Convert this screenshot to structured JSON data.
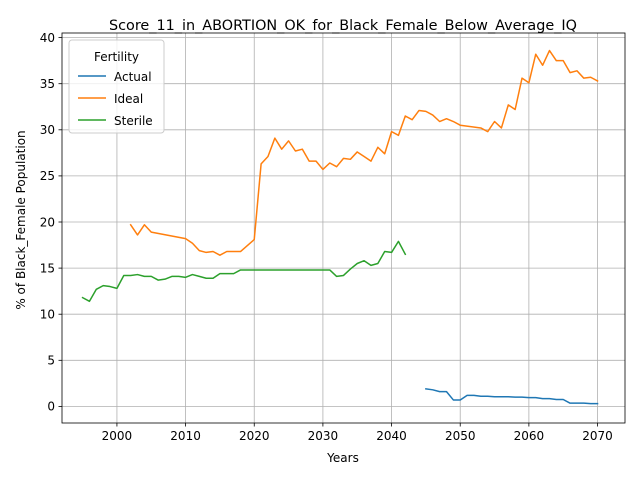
{
  "chart_data": {
    "type": "line",
    "title": "Score_11_in_ABORTION_OK_for_Black_Female_Below_Average_IQ",
    "xlabel": "Years",
    "ylabel": "% of Black_Female Population",
    "xlim": [
      1992,
      2074
    ],
    "ylim": [
      -1.8,
      40.5
    ],
    "xticks": [
      2000,
      2010,
      2020,
      2030,
      2040,
      2050,
      2060,
      2070
    ],
    "yticks": [
      0,
      5,
      10,
      15,
      20,
      25,
      30,
      35,
      40
    ],
    "grid": true,
    "legend": {
      "title": "Fertility",
      "position": "top-left"
    },
    "series": [
      {
        "name": "Actual",
        "color": "#1f77b4",
        "points": [
          [
            2045,
            1.9
          ],
          [
            2046,
            1.8
          ],
          [
            2047,
            1.6
          ],
          [
            2048,
            1.6
          ],
          [
            2049,
            0.7
          ],
          [
            2050,
            0.7
          ],
          [
            2051,
            1.2
          ],
          [
            2052,
            1.2
          ],
          [
            2053,
            1.1
          ],
          [
            2054,
            1.1
          ],
          [
            2055,
            1.05
          ],
          [
            2056,
            1.05
          ],
          [
            2057,
            1.05
          ],
          [
            2058,
            1.0
          ],
          [
            2059,
            1.0
          ],
          [
            2060,
            0.95
          ],
          [
            2061,
            0.95
          ],
          [
            2062,
            0.85
          ],
          [
            2063,
            0.85
          ],
          [
            2064,
            0.75
          ],
          [
            2065,
            0.75
          ],
          [
            2066,
            0.35
          ],
          [
            2067,
            0.35
          ],
          [
            2068,
            0.35
          ],
          [
            2069,
            0.3
          ],
          [
            2070,
            0.3
          ]
        ]
      },
      {
        "name": "Ideal",
        "color": "#ff7f0e",
        "points": [
          [
            2002,
            19.7
          ],
          [
            2003,
            18.6
          ],
          [
            2004,
            19.7
          ],
          [
            2005,
            18.9
          ],
          [
            2010,
            18.2
          ],
          [
            2011,
            17.7
          ],
          [
            2012,
            16.9
          ],
          [
            2013,
            16.7
          ],
          [
            2014,
            16.8
          ],
          [
            2015,
            16.4
          ],
          [
            2016,
            16.8
          ],
          [
            2017,
            16.8
          ],
          [
            2018,
            16.8
          ],
          [
            2020,
            18.1
          ],
          [
            2021,
            26.3
          ],
          [
            2022,
            27.1
          ],
          [
            2023,
            29.1
          ],
          [
            2024,
            27.9
          ],
          [
            2025,
            28.8
          ],
          [
            2026,
            27.7
          ],
          [
            2027,
            27.9
          ],
          [
            2028,
            26.6
          ],
          [
            2029,
            26.6
          ],
          [
            2030,
            25.7
          ],
          [
            2031,
            26.4
          ],
          [
            2032,
            26.0
          ],
          [
            2033,
            26.9
          ],
          [
            2034,
            26.8
          ],
          [
            2035,
            27.6
          ],
          [
            2036,
            27.1
          ],
          [
            2037,
            26.6
          ],
          [
            2038,
            28.1
          ],
          [
            2039,
            27.4
          ],
          [
            2040,
            29.8
          ],
          [
            2041,
            29.4
          ],
          [
            2042,
            31.5
          ],
          [
            2043,
            31.1
          ],
          [
            2044,
            32.1
          ],
          [
            2045,
            32.0
          ],
          [
            2046,
            31.6
          ],
          [
            2047,
            30.9
          ],
          [
            2048,
            31.2
          ],
          [
            2049,
            30.9
          ],
          [
            2050,
            30.5
          ],
          [
            2053,
            30.2
          ],
          [
            2054,
            29.8
          ],
          [
            2055,
            30.9
          ],
          [
            2056,
            30.2
          ],
          [
            2057,
            32.7
          ],
          [
            2058,
            32.2
          ],
          [
            2059,
            35.6
          ],
          [
            2060,
            35.1
          ],
          [
            2061,
            38.2
          ],
          [
            2062,
            37.0
          ],
          [
            2063,
            38.6
          ],
          [
            2064,
            37.5
          ],
          [
            2065,
            37.5
          ],
          [
            2066,
            36.2
          ],
          [
            2067,
            36.4
          ],
          [
            2068,
            35.6
          ],
          [
            2069,
            35.7
          ],
          [
            2070,
            35.3
          ]
        ]
      },
      {
        "name": "Sterile",
        "color": "#2ca02c",
        "points": [
          [
            1995,
            11.8
          ],
          [
            1996,
            11.4
          ],
          [
            1997,
            12.7
          ],
          [
            1998,
            13.1
          ],
          [
            1999,
            13.0
          ],
          [
            2000,
            12.8
          ],
          [
            2001,
            14.2
          ],
          [
            2002,
            14.2
          ],
          [
            2003,
            14.3
          ],
          [
            2004,
            14.1
          ],
          [
            2005,
            14.1
          ],
          [
            2006,
            13.7
          ],
          [
            2007,
            13.8
          ],
          [
            2008,
            14.1
          ],
          [
            2009,
            14.1
          ],
          [
            2010,
            14.0
          ],
          [
            2011,
            14.3
          ],
          [
            2012,
            14.1
          ],
          [
            2013,
            13.9
          ],
          [
            2014,
            13.9
          ],
          [
            2015,
            14.4
          ],
          [
            2016,
            14.4
          ],
          [
            2017,
            14.4
          ],
          [
            2018,
            14.8
          ],
          [
            2019,
            14.8
          ],
          [
            2031,
            14.8
          ],
          [
            2032,
            14.1
          ],
          [
            2033,
            14.2
          ],
          [
            2034,
            14.9
          ],
          [
            2035,
            15.5
          ],
          [
            2036,
            15.8
          ],
          [
            2037,
            15.3
          ],
          [
            2038,
            15.5
          ],
          [
            2039,
            16.8
          ],
          [
            2040,
            16.7
          ],
          [
            2041,
            17.9
          ],
          [
            2042,
            16.5
          ]
        ]
      }
    ]
  }
}
